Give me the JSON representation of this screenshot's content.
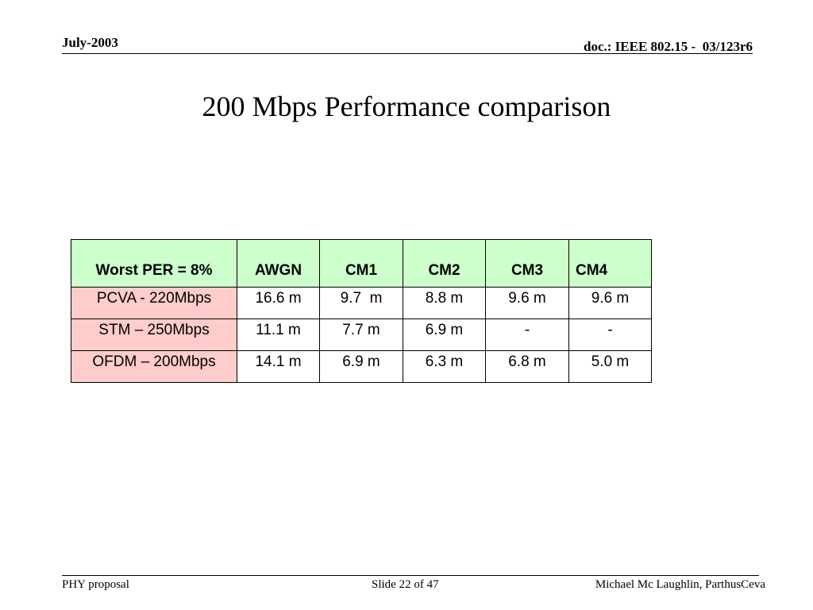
{
  "header": {
    "date": "July-2003",
    "doc_id": "doc.: IEEE 802.15 -  03/123r6"
  },
  "slide": {
    "title": "200 Mbps Performance comparison"
  },
  "table": {
    "header": [
      "Worst PER = 8%",
      "AWGN",
      "CM1",
      "CM2",
      "CM3",
      "CM4"
    ],
    "rows": [
      [
        "PCVA - 220Mbps",
        "16.6 m",
        "9.7  m",
        "8.8 m",
        "9.6 m",
        "9.6 m"
      ],
      [
        "STM – 250Mbps",
        "11.1 m",
        "7.7 m",
        "6.9 m",
        "-",
        "-"
      ],
      [
        "OFDM – 200Mbps",
        "14.1 m",
        "6.9 m",
        "6.3 m",
        "6.8 m",
        "5.0 m"
      ]
    ]
  },
  "footer": {
    "left": "PHY proposal",
    "center": "Slide 22 of 47",
    "right": "Michael Mc Laughlin, ParthusCeva"
  },
  "colors": {
    "header_row_bg": "#ccffcc",
    "row_header_bg": "#ffcccc"
  }
}
